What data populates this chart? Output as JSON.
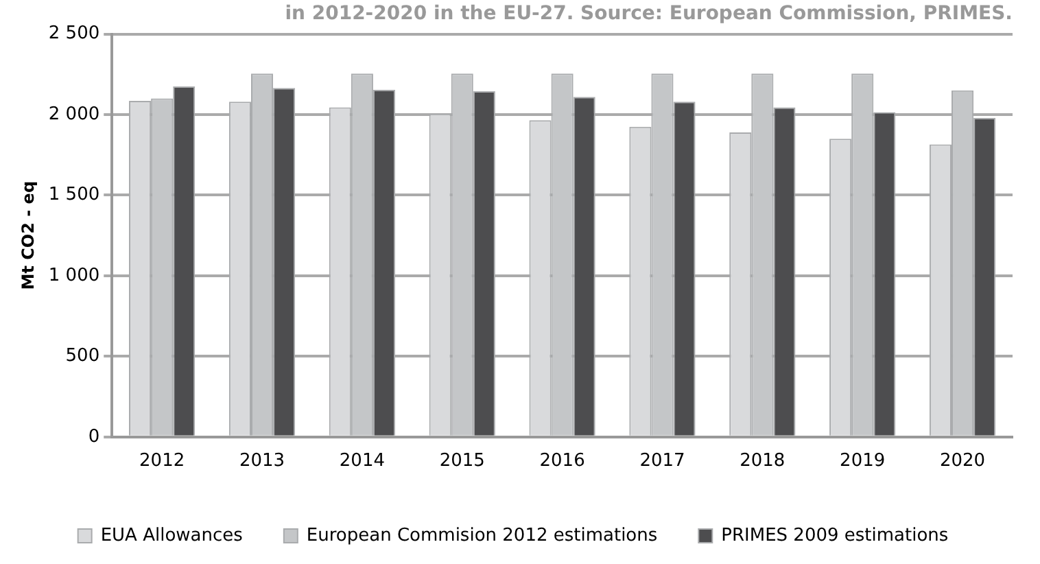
{
  "chart_data": {
    "type": "bar",
    "title": "in 2012-2020 in the EU-27. Source: European Commission, PRIMES.",
    "ylabel": "Mt CO2 - eq",
    "categories": [
      "2012",
      "2013",
      "2014",
      "2015",
      "2016",
      "2017",
      "2018",
      "2019",
      "2020"
    ],
    "series": [
      {
        "name": "EUA Allowances",
        "color": "#d9dadc",
        "values": [
          2085,
          2080,
          2045,
          2005,
          1965,
          1925,
          1890,
          1850,
          1815
        ]
      },
      {
        "name": "European Commision 2012 estimations",
        "color": "#c4c6c8",
        "values": [
          2100,
          2255,
          2255,
          2255,
          2255,
          2255,
          2255,
          2255,
          2150
        ]
      },
      {
        "name": "PRIMES 2009 estimations",
        "color": "#4d4d4f",
        "values": [
          2175,
          2165,
          2155,
          2145,
          2110,
          2080,
          2045,
          2015,
          1980
        ]
      }
    ],
    "ylim": [
      0,
      2500
    ],
    "yticks": [
      0,
      500,
      {
        "value": 1000,
        "label": "1 000"
      },
      {
        "value": 1500,
        "label": "1 500"
      },
      {
        "value": 2000,
        "label": "2 000"
      },
      {
        "value": 2500,
        "label": "2 500"
      }
    ],
    "grid": "y",
    "legend": "bottom"
  }
}
